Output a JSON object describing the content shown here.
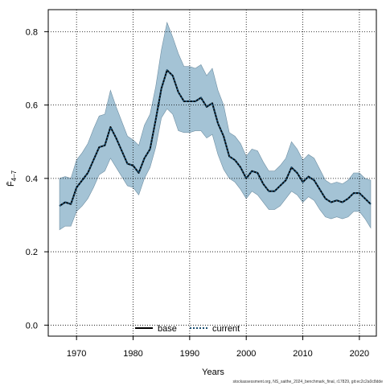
{
  "chart_data": {
    "type": "area",
    "xlabel": "Years",
    "ylabel": "F̄",
    "ylabel_subscript": "4–7",
    "xlim": [
      1965,
      2023
    ],
    "ylim": [
      -0.03,
      0.86
    ],
    "x_ticks": [
      1970,
      1980,
      1990,
      2000,
      2010,
      2020
    ],
    "y_ticks": [
      0.0,
      0.2,
      0.4,
      0.6,
      0.8
    ],
    "y_tick_labels": [
      "0.0",
      "0.2",
      "0.4",
      "0.6",
      "0.8"
    ],
    "grid": true,
    "legend_position": "bottom-center",
    "x": [
      1967,
      1968,
      1969,
      1970,
      1971,
      1972,
      1973,
      1974,
      1975,
      1976,
      1977,
      1978,
      1979,
      1980,
      1981,
      1982,
      1983,
      1984,
      1985,
      1986,
      1987,
      1988,
      1989,
      1990,
      1991,
      1992,
      1993,
      1994,
      1995,
      1996,
      1997,
      1998,
      1999,
      2000,
      2001,
      2002,
      2003,
      2004,
      2005,
      2006,
      2007,
      2008,
      2009,
      2010,
      2011,
      2012,
      2013,
      2014,
      2015,
      2016,
      2017,
      2018,
      2019,
      2020,
      2021,
      2022
    ],
    "series": [
      {
        "name": "base",
        "color": "#000000",
        "style": "solid",
        "values": [
          0.325,
          0.335,
          0.33,
          0.375,
          0.395,
          0.415,
          0.45,
          0.485,
          0.49,
          0.54,
          0.51,
          0.475,
          0.44,
          0.435,
          0.415,
          0.455,
          0.48,
          0.56,
          0.645,
          0.695,
          0.68,
          0.635,
          0.61,
          0.61,
          0.61,
          0.62,
          0.595,
          0.605,
          0.55,
          0.515,
          0.46,
          0.45,
          0.43,
          0.4,
          0.42,
          0.415,
          0.385,
          0.365,
          0.365,
          0.38,
          0.395,
          0.43,
          0.415,
          0.39,
          0.405,
          0.395,
          0.37,
          0.345,
          0.335,
          0.34,
          0.335,
          0.345,
          0.36,
          0.36,
          0.345,
          0.33
        ]
      },
      {
        "name": "current",
        "color": "#1b4f72",
        "style": "dotted",
        "values": [
          0.325,
          0.335,
          0.33,
          0.375,
          0.395,
          0.415,
          0.45,
          0.485,
          0.49,
          0.54,
          0.51,
          0.475,
          0.44,
          0.435,
          0.415,
          0.455,
          0.48,
          0.56,
          0.645,
          0.695,
          0.68,
          0.635,
          0.61,
          0.61,
          0.61,
          0.62,
          0.595,
          0.605,
          0.55,
          0.515,
          0.46,
          0.45,
          0.43,
          0.4,
          0.42,
          0.415,
          0.385,
          0.365,
          0.365,
          0.38,
          0.395,
          0.43,
          0.415,
          0.39,
          0.405,
          0.395,
          0.37,
          0.345,
          0.335,
          0.34,
          0.335,
          0.345,
          0.36,
          0.36,
          0.345,
          0.33
        ]
      }
    ],
    "band": {
      "color": "#7ea9c3",
      "lower": [
        0.26,
        0.27,
        0.27,
        0.31,
        0.325,
        0.345,
        0.375,
        0.41,
        0.42,
        0.455,
        0.43,
        0.405,
        0.38,
        0.375,
        0.355,
        0.4,
        0.43,
        0.485,
        0.565,
        0.59,
        0.575,
        0.53,
        0.525,
        0.525,
        0.53,
        0.53,
        0.51,
        0.52,
        0.465,
        0.425,
        0.4,
        0.39,
        0.37,
        0.345,
        0.365,
        0.355,
        0.335,
        0.315,
        0.315,
        0.325,
        0.345,
        0.365,
        0.355,
        0.335,
        0.35,
        0.34,
        0.315,
        0.295,
        0.29,
        0.295,
        0.29,
        0.295,
        0.31,
        0.31,
        0.29,
        0.265
      ],
      "upper": [
        0.4,
        0.405,
        0.4,
        0.45,
        0.47,
        0.495,
        0.535,
        0.57,
        0.575,
        0.64,
        0.595,
        0.555,
        0.515,
        0.505,
        0.49,
        0.545,
        0.575,
        0.65,
        0.75,
        0.825,
        0.785,
        0.74,
        0.705,
        0.705,
        0.7,
        0.71,
        0.68,
        0.7,
        0.64,
        0.6,
        0.525,
        0.515,
        0.495,
        0.46,
        0.48,
        0.475,
        0.445,
        0.42,
        0.42,
        0.435,
        0.455,
        0.5,
        0.48,
        0.45,
        0.465,
        0.455,
        0.425,
        0.395,
        0.385,
        0.39,
        0.385,
        0.395,
        0.415,
        0.415,
        0.4,
        0.395
      ]
    },
    "footer": "stockassessment.org, NS_saithe_2024_benchmark_final, r17829, git:ec2c2a0c8dde"
  }
}
